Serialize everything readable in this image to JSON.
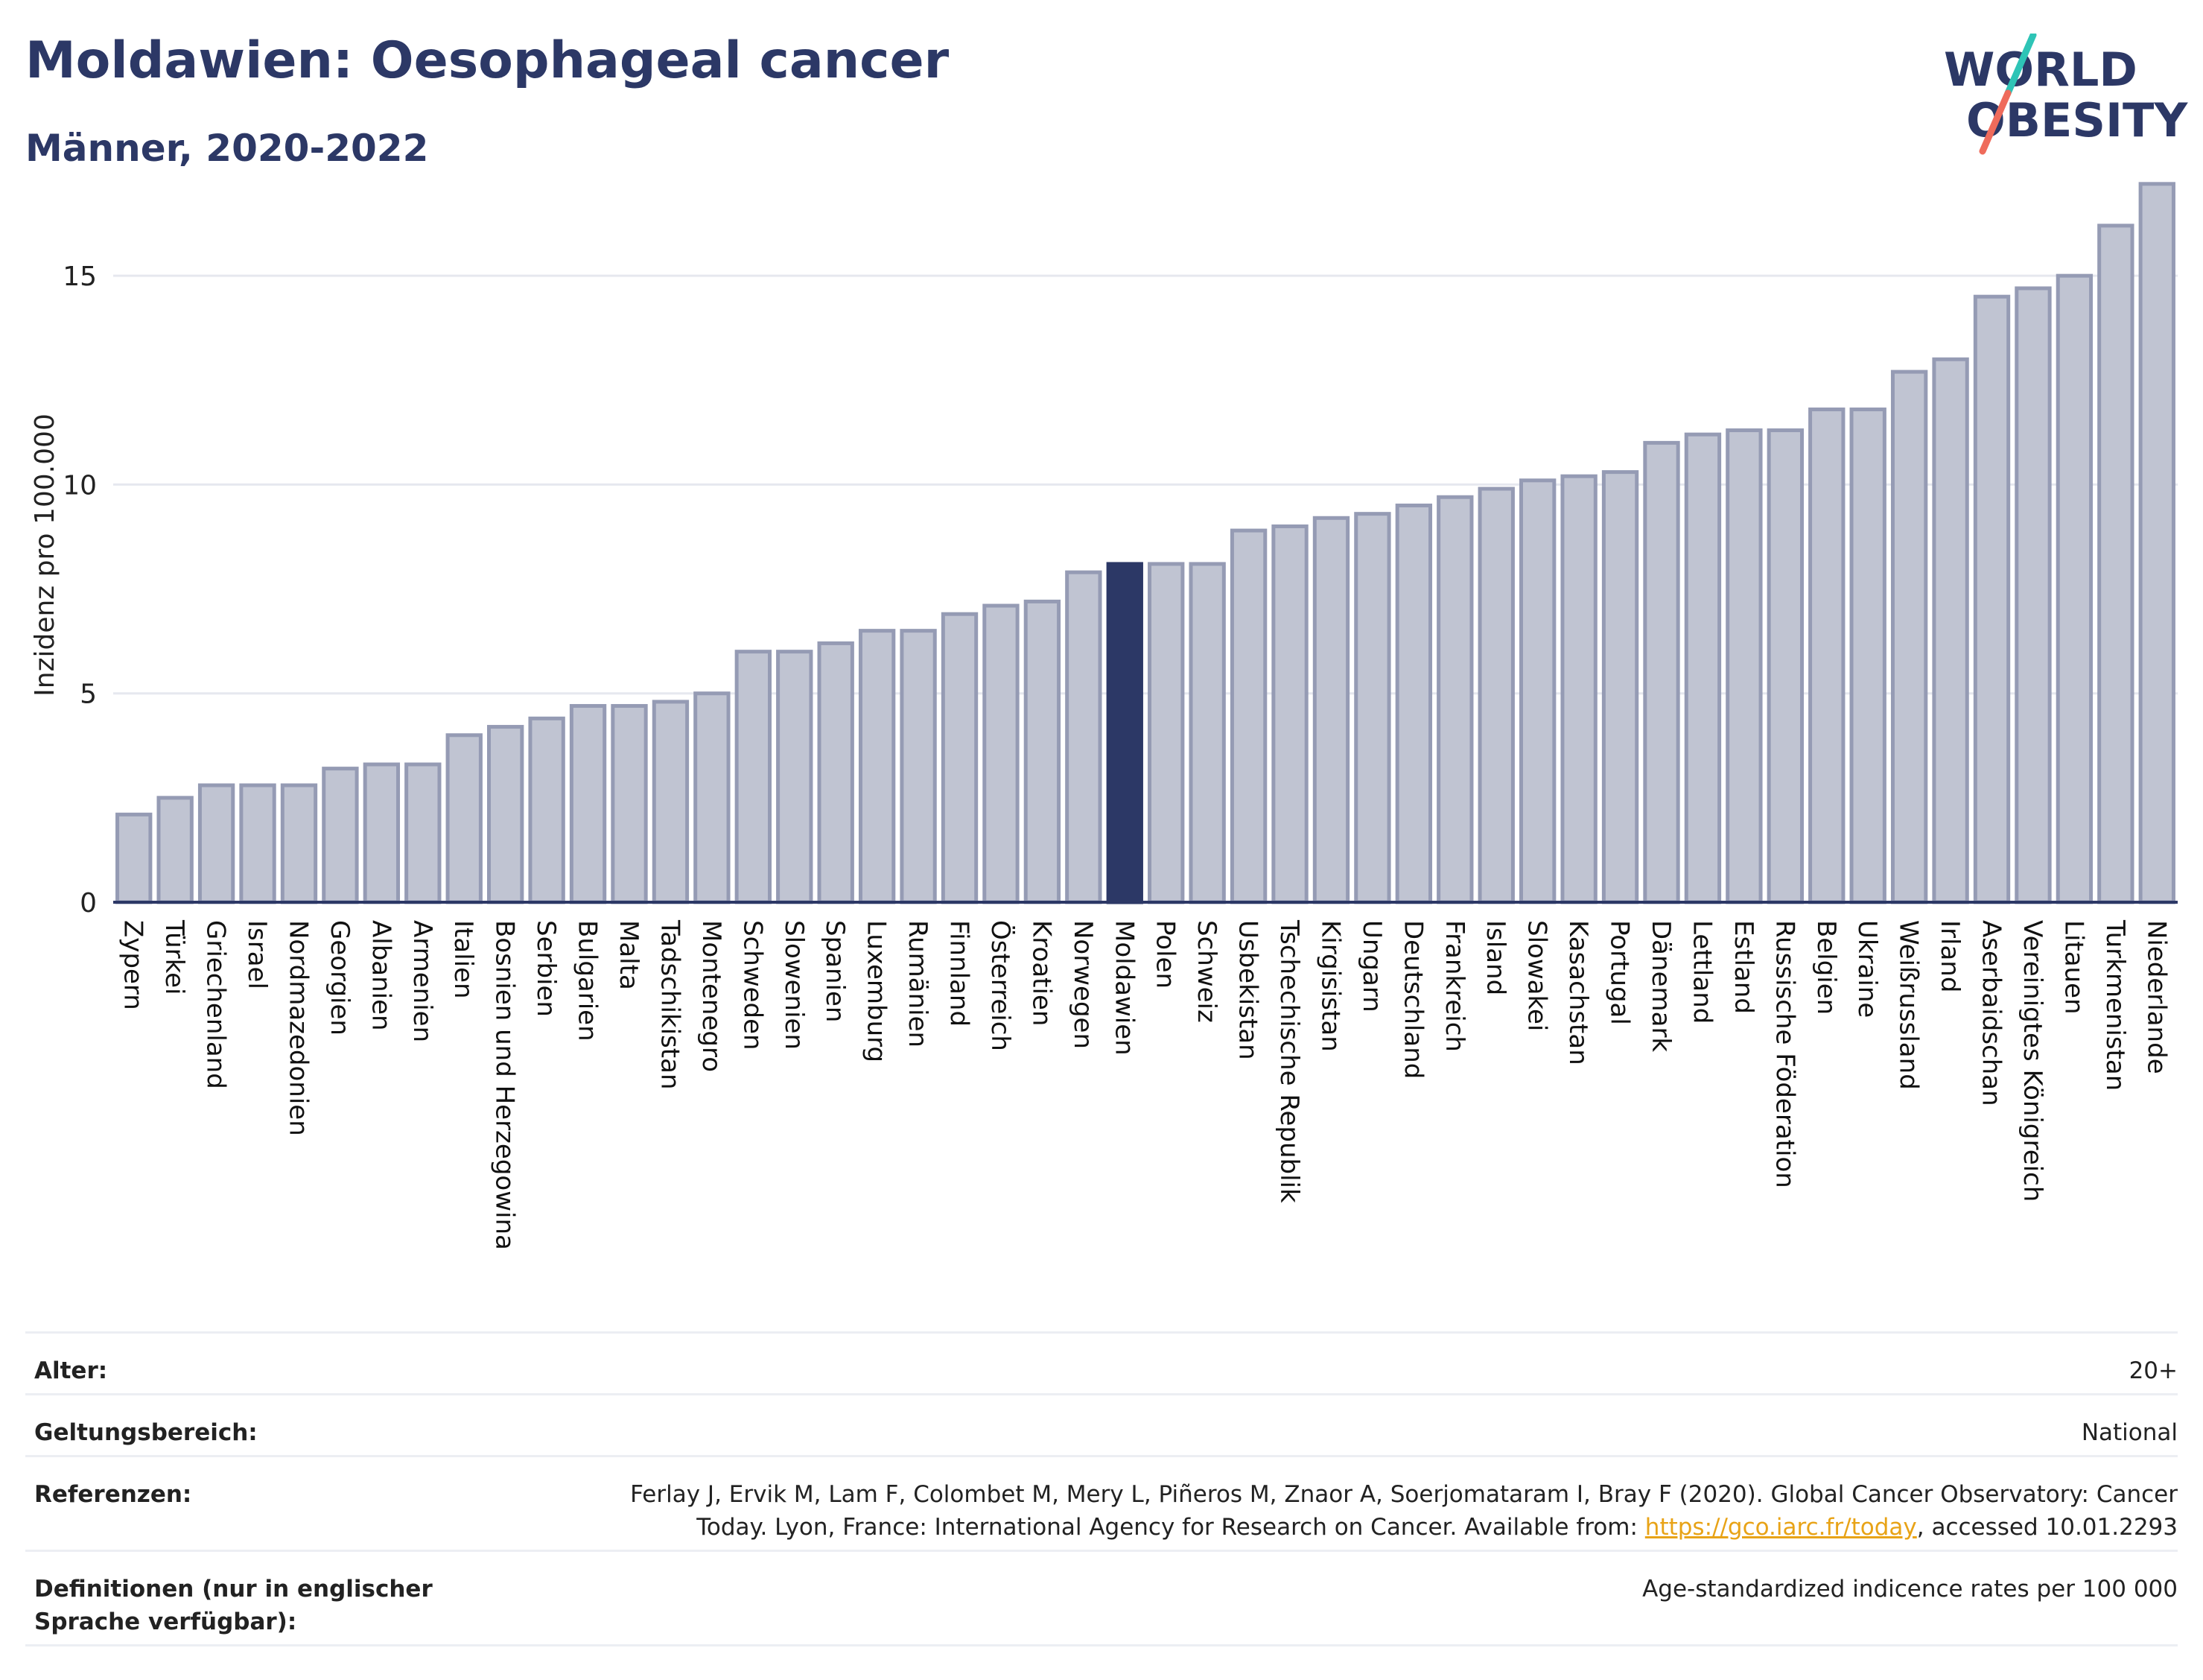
{
  "header": {
    "title": "Moldawien: Oesophageal cancer",
    "subtitle": "Männer, 2020-2022"
  },
  "logo": {
    "line1": "WORLD",
    "line2": "OBESITY",
    "colors": {
      "text": "#2c3866",
      "slash_top": "#2ec4b6",
      "slash_bottom": "#ef6b5b"
    }
  },
  "chart_data": {
    "type": "bar",
    "ylabel": "Inzidenz pro 100.000",
    "ylim": [
      0,
      17.5
    ],
    "yticks": [
      0,
      5,
      10,
      15
    ],
    "grid": true,
    "highlight": "Moldawien",
    "colors": {
      "bar": "#c0c4d2",
      "bar_edge": "#959bb4",
      "highlight": "#2c3866"
    },
    "categories": [
      "Zypern",
      "Türkei",
      "Griechenland",
      "Israel",
      "Nordmazedonien",
      "Georgien",
      "Albanien",
      "Armenien",
      "Italien",
      "Bosnien und Herzegowina",
      "Serbien",
      "Bulgarien",
      "Malta",
      "Tadschikistan",
      "Montenegro",
      "Schweden",
      "Slowenien",
      "Spanien",
      "Luxemburg",
      "Rumänien",
      "Finnland",
      "Österreich",
      "Kroatien",
      "Norwegen",
      "Moldawien",
      "Polen",
      "Schweiz",
      "Usbekistan",
      "Tschechische Republik",
      "Kirgisistan",
      "Ungarn",
      "Deutschland",
      "Frankreich",
      "Island",
      "Slowakei",
      "Kasachstan",
      "Portugal",
      "Dänemark",
      "Lettland",
      "Estland",
      "Russische Föderation",
      "Belgien",
      "Ukraine",
      "Weißrussland",
      "Irland",
      "Aserbaidschan",
      "Vereinigtes Königreich",
      "Litauen",
      "Turkmenistan",
      "Niederlande"
    ],
    "values": [
      2.1,
      2.5,
      2.8,
      2.8,
      2.8,
      3.2,
      3.3,
      3.3,
      4.0,
      4.2,
      4.4,
      4.7,
      4.7,
      4.8,
      5.0,
      6.0,
      6.0,
      6.2,
      6.5,
      6.5,
      6.9,
      7.1,
      7.2,
      7.9,
      8.1,
      8.1,
      8.1,
      8.9,
      9.0,
      9.2,
      9.3,
      9.5,
      9.7,
      9.9,
      10.1,
      10.2,
      10.3,
      11.0,
      11.2,
      11.3,
      11.3,
      11.8,
      11.8,
      12.7,
      13.0,
      14.5,
      14.7,
      15.0,
      16.2,
      17.2
    ]
  },
  "meta": [
    {
      "label": "Alter:",
      "value": "20+"
    },
    {
      "label": "Geltungsbereich:",
      "value": "National"
    },
    {
      "label": "Referenzen:",
      "value_pre": "Ferlay J, Ervik M, Lam F, Colombet M, Mery L, Piñeros M, Znaor A, Soerjomataram I, Bray F (2020). Global Cancer Observatory: Cancer Today. Lyon, France: International Agency for Research on Cancer. Available from: ",
      "link": "https://gco.iarc.fr/today",
      "value_post": ", accessed 10.01.2293"
    },
    {
      "label": "Definitionen (nur in englischer Sprache verfügbar):",
      "value": "Age-standardized indicence rates per 100 000"
    }
  ]
}
